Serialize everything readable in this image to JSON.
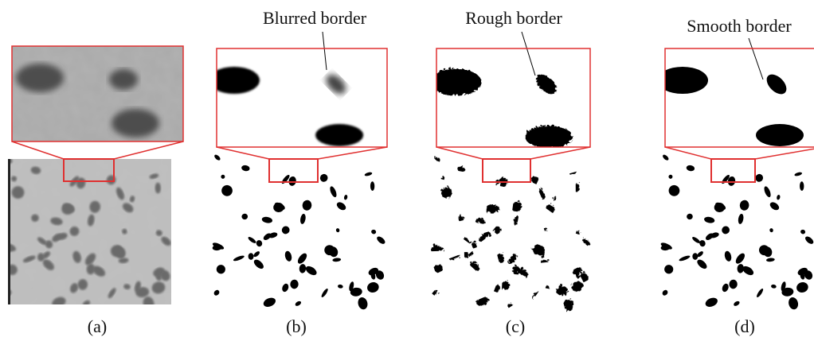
{
  "panels": [
    {
      "label": "(a)"
    },
    {
      "label": "(b)",
      "annotation": "Blurred border"
    },
    {
      "label": "(c)",
      "annotation": "Rough border"
    },
    {
      "label": "(d)",
      "annotation": "Smooth border"
    }
  ]
}
